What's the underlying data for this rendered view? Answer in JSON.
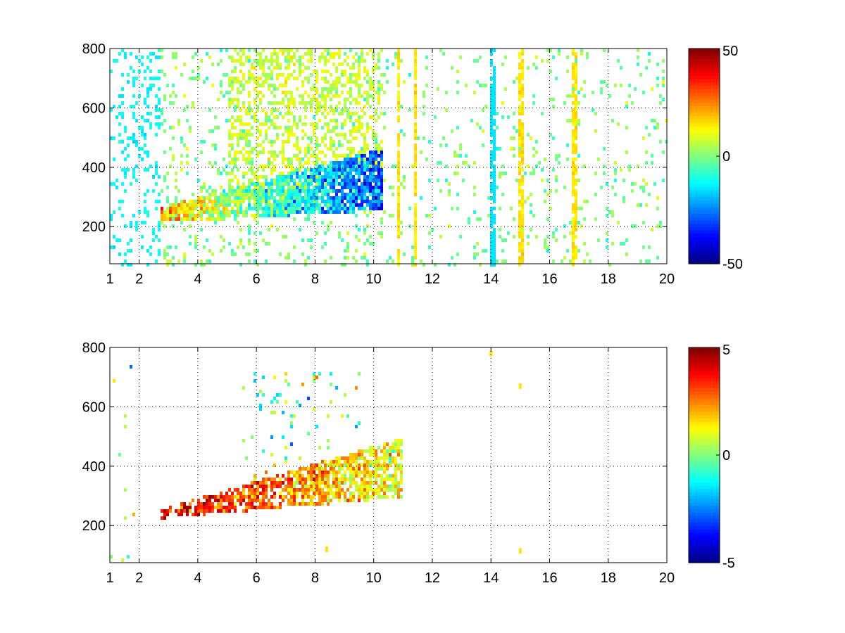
{
  "chart_data": [
    {
      "type": "heatmap",
      "title": "",
      "xlabel": "",
      "ylabel": "",
      "xlim": [
        1,
        20
      ],
      "ylim": [
        75,
        800
      ],
      "xticks": [
        1,
        2,
        4,
        6,
        8,
        10,
        12,
        14,
        16,
        18,
        20
      ],
      "yticks": [
        200,
        400,
        600,
        800
      ],
      "grid": true,
      "colormap": "jet",
      "colorbar": {
        "range": [
          -50,
          50
        ],
        "ticks": [
          50,
          0,
          -50
        ]
      },
      "features": {
        "band": {
          "x_start": 2.7,
          "x_end": 10.3,
          "y_start": 245,
          "y_end": 365,
          "value_start": 18,
          "value_end": -30
        },
        "stripes_x": [
          14,
          15,
          16.8,
          10.8,
          11.4
        ],
        "upper_noise": {
          "x_start": 5.0,
          "x_end": 9.5,
          "y_low": 420,
          "y_high": 800,
          "value": 8
        }
      }
    },
    {
      "type": "heatmap",
      "title": "",
      "xlabel": "",
      "ylabel": "",
      "xlim": [
        1,
        20
      ],
      "ylim": [
        75,
        800
      ],
      "xticks": [
        1,
        2,
        4,
        6,
        8,
        10,
        12,
        14,
        16,
        18,
        20
      ],
      "yticks": [
        200,
        400,
        600,
        800
      ],
      "grid": true,
      "colormap": "jet",
      "colorbar": {
        "range": [
          -5,
          5
        ],
        "ticks": [
          5,
          0,
          -5
        ]
      },
      "features": {
        "band": {
          "x_start": 2.7,
          "x_end": 10.9,
          "y_start": 245,
          "y_end": 400,
          "value_start": 4,
          "value_end": 1
        },
        "isolated_points": [
          [
            14,
            780
          ],
          [
            15,
            670
          ],
          [
            15,
            115
          ],
          [
            8.4,
            120
          ]
        ]
      }
    }
  ],
  "colors": {
    "jet": [
      "#00008f",
      "#0000ff",
      "#00ffff",
      "#ffff00",
      "#ff0000",
      "#800000"
    ]
  }
}
